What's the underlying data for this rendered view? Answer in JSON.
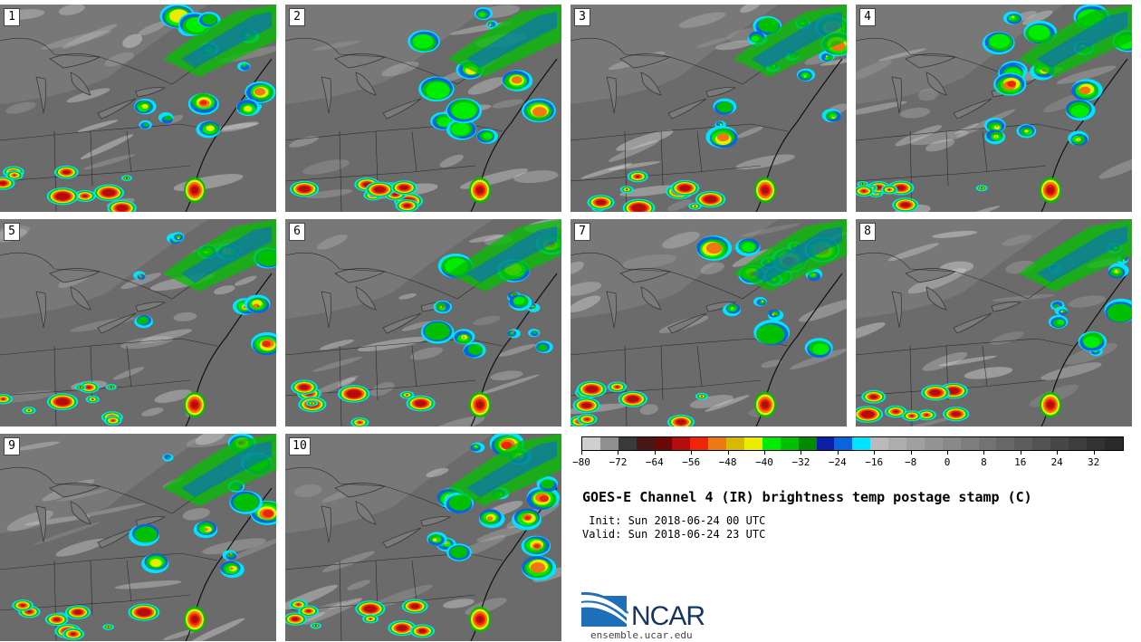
{
  "panels": [
    "1",
    "2",
    "3",
    "4",
    "5",
    "6",
    "7",
    "8",
    "9",
    "10"
  ],
  "colorbar": {
    "colors": [
      "#cfcfcf",
      "#8f8f8f",
      "#3a3a3a",
      "#4a1717",
      "#6b0808",
      "#b50d0d",
      "#f0240b",
      "#f07810",
      "#d8b800",
      "#ecec00",
      "#00ec00",
      "#00c000",
      "#008a00",
      "#0a1ea8",
      "#0a64e0",
      "#00e4ff",
      "#bababa",
      "#adadad",
      "#a0a0a0",
      "#949494",
      "#898989",
      "#7e7e7e",
      "#737373",
      "#686868",
      "#5d5d5d",
      "#525252",
      "#474747",
      "#3d3d3d",
      "#333333",
      "#2a2a2a"
    ],
    "ticks": [
      "−80",
      "−72",
      "−64",
      "−56",
      "−48",
      "−40",
      "−32",
      "−24",
      "−16",
      "−8",
      "0",
      "8",
      "16",
      "24",
      "32"
    ]
  },
  "title": "GOES-E Channel 4 (IR) brightness temp postage stamp (C)",
  "init_line": " Init: Sun 2018-06-24 00 UTC",
  "valid_line": "Valid: Sun 2018-06-24 23 UTC",
  "logo": {
    "text": "NCAR",
    "icon": "ncar-logo-icon"
  },
  "url": "ensemble.ucar.edu"
}
